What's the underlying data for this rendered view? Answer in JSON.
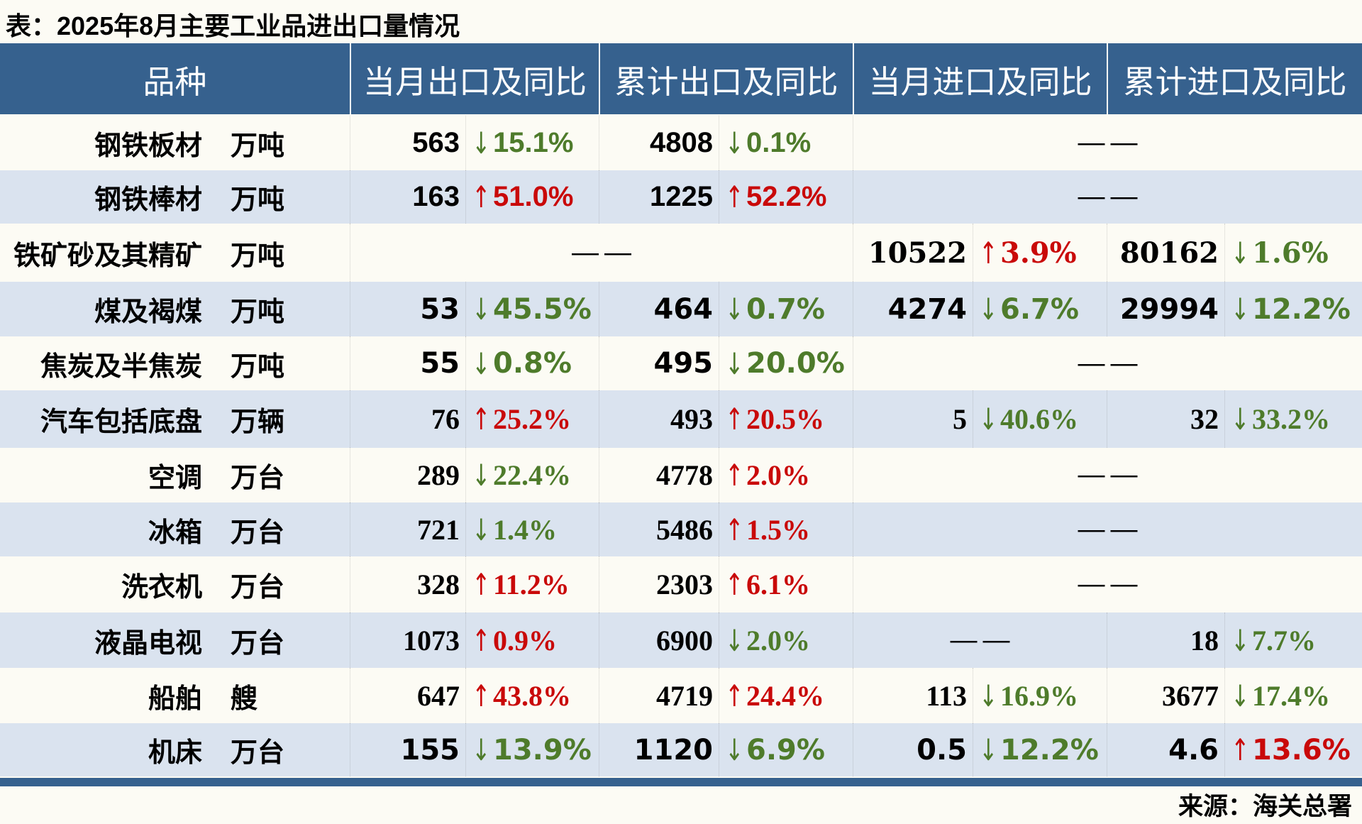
{
  "title": "表：2025年8月主要工业品进出口量情况",
  "source": "来源：海关总署",
  "icons": {
    "up_arrow": "↑",
    "down_arrow": "↓"
  },
  "colors": {
    "header_bg": "#36618E",
    "alt_row_bg": "#DAE3EF",
    "white_row_bg": "#FCFBF4",
    "up_red": "#C90909",
    "down_green": "#4E7B2B"
  },
  "table": {
    "headers": [
      "品种",
      "当月出口及同比",
      "累计出口及同比",
      "当月进口及同比",
      "累计进口及同比"
    ],
    "dash": "——",
    "rows": [
      {
        "name": "钢铁板材",
        "unit": "万吨",
        "monthly_export": {
          "value": "563",
          "dir": "down",
          "pct": "15.1%"
        },
        "cumulative_export": {
          "value": "4808",
          "dir": "down",
          "pct": "0.1%"
        },
        "monthly_import": {
          "dash": true,
          "span": 2
        },
        "cumulative_import": null
      },
      {
        "name": "钢铁棒材",
        "unit": "万吨",
        "monthly_export": {
          "value": "163",
          "dir": "up",
          "pct": "51.0%"
        },
        "cumulative_export": {
          "value": "1225",
          "dir": "up",
          "pct": "52.2%"
        },
        "monthly_import": {
          "dash": true,
          "span": 2
        },
        "cumulative_import": null
      },
      {
        "name": "铁矿砂及其精矿",
        "unit": "万吨",
        "monthly_export": {
          "dash": true,
          "span": 2
        },
        "cumulative_export": null,
        "monthly_import": {
          "value": "10522",
          "dir": "up",
          "pct": "3.9%"
        },
        "cumulative_import": {
          "value": "80162",
          "dir": "down",
          "pct": "1.6%"
        }
      },
      {
        "name": "煤及褐煤",
        "unit": "万吨",
        "monthly_export": {
          "value": "53",
          "dir": "down",
          "pct": "45.5%"
        },
        "cumulative_export": {
          "value": "464",
          "dir": "down",
          "pct": "0.7%"
        },
        "monthly_import": {
          "value": "4274",
          "dir": "down",
          "pct": "6.7%"
        },
        "cumulative_import": {
          "value": "29994",
          "dir": "down",
          "pct": "12.2%"
        }
      },
      {
        "name": "焦炭及半焦炭",
        "unit": "万吨",
        "monthly_export": {
          "value": "55",
          "dir": "down",
          "pct": "0.8%"
        },
        "cumulative_export": {
          "value": "495",
          "dir": "down",
          "pct": "20.0%"
        },
        "monthly_import": {
          "dash": true,
          "span": 2
        },
        "cumulative_import": null
      },
      {
        "name": "汽车包括底盘",
        "unit": "万辆",
        "monthly_export": {
          "value": "76",
          "dir": "up",
          "pct": "25.2%"
        },
        "cumulative_export": {
          "value": "493",
          "dir": "up",
          "pct": "20.5%"
        },
        "monthly_import": {
          "value": "5",
          "dir": "down",
          "pct": "40.6%"
        },
        "cumulative_import": {
          "value": "32",
          "dir": "down",
          "pct": "33.2%"
        }
      },
      {
        "name": "空调",
        "unit": "万台",
        "monthly_export": {
          "value": "289",
          "dir": "down",
          "pct": "22.4%"
        },
        "cumulative_export": {
          "value": "4778",
          "dir": "up",
          "pct": "2.0%"
        },
        "monthly_import": {
          "dash": true,
          "span": 2
        },
        "cumulative_import": null
      },
      {
        "name": "冰箱",
        "unit": "万台",
        "monthly_export": {
          "value": "721",
          "dir": "down",
          "pct": "1.4%"
        },
        "cumulative_export": {
          "value": "5486",
          "dir": "up",
          "pct": "1.5%"
        },
        "monthly_import": {
          "dash": true,
          "span": 2
        },
        "cumulative_import": null
      },
      {
        "name": "洗衣机",
        "unit": "万台",
        "monthly_export": {
          "value": "328",
          "dir": "up",
          "pct": "11.2%"
        },
        "cumulative_export": {
          "value": "2303",
          "dir": "up",
          "pct": "6.1%"
        },
        "monthly_import": {
          "dash": true,
          "span": 2
        },
        "cumulative_import": null
      },
      {
        "name": "液晶电视",
        "unit": "万台",
        "monthly_export": {
          "value": "1073",
          "dir": "up",
          "pct": "0.9%"
        },
        "cumulative_export": {
          "value": "6900",
          "dir": "down",
          "pct": "2.0%"
        },
        "monthly_import": {
          "dash": true,
          "span": 1
        },
        "cumulative_import": {
          "value": "18",
          "dir": "down",
          "pct": "7.7%"
        }
      },
      {
        "name": "船舶",
        "unit": "艘",
        "monthly_export": {
          "value": "647",
          "dir": "up",
          "pct": "43.8%"
        },
        "cumulative_export": {
          "value": "4719",
          "dir": "up",
          "pct": "24.4%"
        },
        "monthly_import": {
          "value": "113",
          "dir": "down",
          "pct": "16.9%"
        },
        "cumulative_import": {
          "value": "3677",
          "dir": "down",
          "pct": "17.4%"
        }
      },
      {
        "name": "机床",
        "unit": "万台",
        "monthly_export": {
          "value": "155",
          "dir": "down",
          "pct": "13.9%"
        },
        "cumulative_export": {
          "value": "1120",
          "dir": "down",
          "pct": "6.9%"
        },
        "monthly_import": {
          "value": "0.5",
          "dir": "down",
          "pct": "12.2%"
        },
        "cumulative_import": {
          "value": "4.6",
          "dir": "up",
          "pct": "13.6%"
        }
      }
    ]
  }
}
